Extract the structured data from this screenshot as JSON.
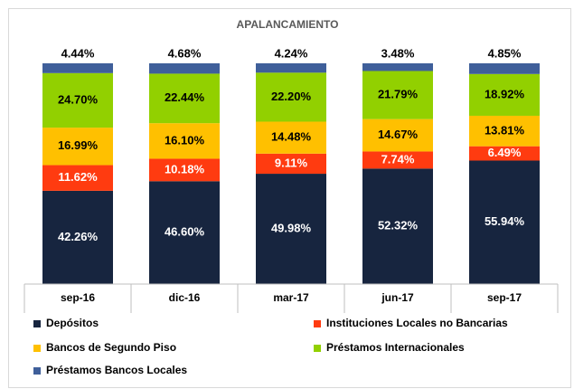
{
  "chart_data": {
    "type": "stacked_bar",
    "title": "APALANCAMIENTO",
    "categories": [
      "sep-16",
      "dic-16",
      "mar-17",
      "jun-17",
      "sep-17"
    ],
    "ylim": [
      0,
      100
    ],
    "series": [
      {
        "name": "Depósitos",
        "color": "#17253f",
        "values": [
          42.26,
          46.6,
          49.98,
          52.32,
          55.94
        ],
        "value_labels": [
          "42.26%",
          "46.60%",
          "49.98%",
          "52.32%",
          "55.94%"
        ]
      },
      {
        "name": "Instituciones Locales no Bancarias",
        "color": "#ff3b10",
        "values": [
          11.62,
          10.18,
          9.11,
          7.74,
          6.49
        ],
        "value_labels": [
          "11.62%",
          "10.18%",
          "9.11%",
          "7.74%",
          "6.49%"
        ]
      },
      {
        "name": "Bancos de Segundo Piso",
        "color": "#ffc000",
        "values": [
          16.99,
          16.1,
          14.48,
          14.67,
          13.81
        ],
        "value_labels": [
          "16.99%",
          "16.10%",
          "14.48%",
          "14.67%",
          "13.81%"
        ]
      },
      {
        "name": "Préstamos Internacionales",
        "color": "#92d000",
        "values": [
          24.7,
          22.44,
          22.2,
          21.79,
          18.92
        ],
        "value_labels": [
          "24.70%",
          "22.44%",
          "22.20%",
          "21.79%",
          "18.92%"
        ]
      },
      {
        "name": "Préstamos Bancos Locales",
        "color": "#3f5f9a",
        "values": [
          4.44,
          4.68,
          4.24,
          3.48,
          4.85
        ],
        "value_labels": [
          "4.44%",
          "4.68%",
          "4.24%",
          "3.48%",
          "4.85%"
        ]
      }
    ]
  }
}
